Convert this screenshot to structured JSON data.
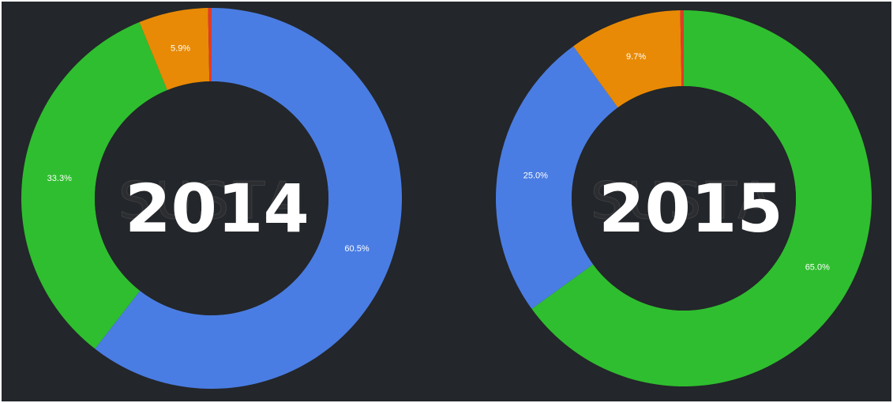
{
  "colors": {
    "background": "#23262a",
    "blue": "#4a7de3",
    "green": "#2fbe2f",
    "orange": "#e88a05",
    "red": "#e23b2a"
  },
  "watermark": "SUSTA",
  "chart_data": [
    {
      "type": "pie",
      "center_label": "2014",
      "slices": [
        {
          "value": 60.5,
          "label": "60.5%",
          "color": "#4a7de3"
        },
        {
          "value": 33.3,
          "label": "33.3%",
          "color": "#2fbe2f"
        },
        {
          "value": 5.9,
          "label": "5.9%",
          "color": "#e88a05"
        },
        {
          "value": 0.3,
          "label": "",
          "color": "#e23b2a"
        }
      ]
    },
    {
      "type": "pie",
      "center_label": "2015",
      "slices": [
        {
          "value": 65.0,
          "label": "65.0%",
          "color": "#2fbe2f"
        },
        {
          "value": 25.0,
          "label": "25.0%",
          "color": "#4a7de3"
        },
        {
          "value": 9.7,
          "label": "9.7%",
          "color": "#e88a05"
        },
        {
          "value": 0.3,
          "label": "",
          "color": "#e23b2a"
        }
      ]
    }
  ]
}
